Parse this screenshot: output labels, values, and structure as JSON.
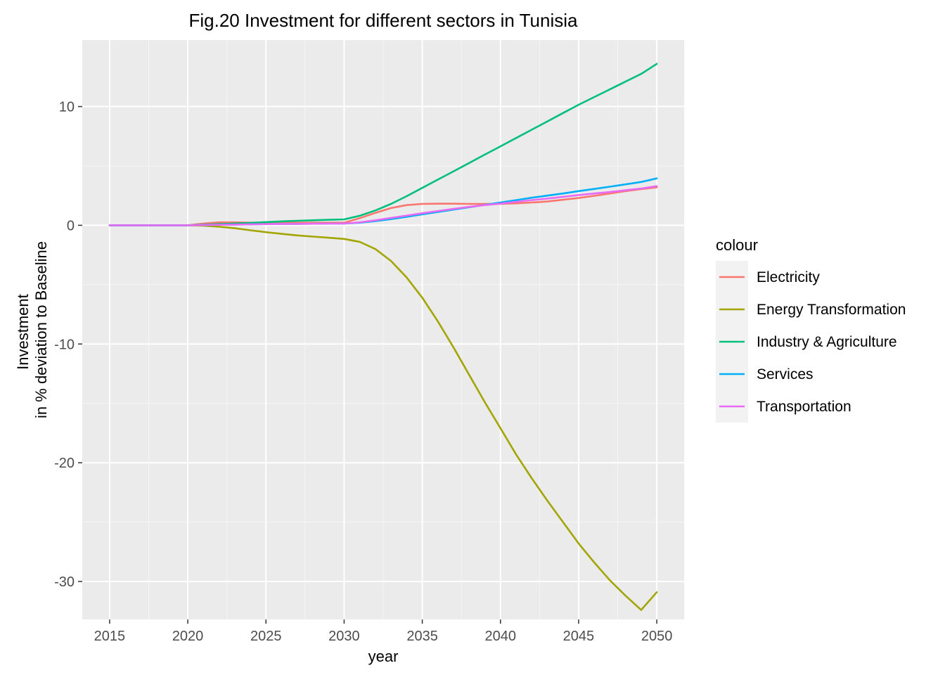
{
  "chart_data": {
    "type": "line",
    "title": "Fig.20 Investment for different sectors in Tunisia",
    "xlabel": "year",
    "ylabel_lines": [
      "Investment",
      "in % deviation to Baseline"
    ],
    "xlim": [
      2013.25,
      2051.75
    ],
    "ylim": [
      -33.2,
      15.6
    ],
    "x_ticks": [
      2015,
      2020,
      2025,
      2030,
      2035,
      2040,
      2045,
      2050
    ],
    "x_tick_labels": [
      "2015",
      "2020",
      "2025",
      "2030",
      "2035",
      "2040",
      "2045",
      "2050"
    ],
    "y_ticks": [
      10,
      0,
      -10,
      -20,
      -30
    ],
    "y_tick_labels": [
      "10",
      "0",
      "-10",
      "-20",
      "-30"
    ],
    "grid": true,
    "legend": {
      "title": "colour",
      "placement": "right"
    },
    "x": [
      2015,
      2016,
      2017,
      2018,
      2019,
      2020,
      2021,
      2022,
      2023,
      2024,
      2025,
      2026,
      2027,
      2028,
      2029,
      2030,
      2031,
      2032,
      2033,
      2034,
      2035,
      2036,
      2037,
      2038,
      2039,
      2040,
      2041,
      2042,
      2043,
      2044,
      2045,
      2046,
      2047,
      2048,
      2049,
      2050
    ],
    "series": [
      {
        "name": "Electricity",
        "color": "#F8766D",
        "values": [
          0,
          0,
          0,
          0,
          0,
          0,
          0.15,
          0.25,
          0.25,
          0.22,
          0.22,
          0.22,
          0.22,
          0.22,
          0.22,
          0.22,
          0.6,
          1.05,
          1.45,
          1.7,
          1.8,
          1.82,
          1.82,
          1.8,
          1.8,
          1.8,
          1.85,
          1.92,
          2.0,
          2.15,
          2.3,
          2.48,
          2.68,
          2.88,
          3.05,
          3.2
        ]
      },
      {
        "name": "Energy Transformation",
        "color": "#A3A500",
        "values": [
          0,
          0,
          0,
          0,
          0,
          0,
          -0.03,
          -0.12,
          -0.25,
          -0.42,
          -0.58,
          -0.72,
          -0.85,
          -0.95,
          -1.05,
          -1.15,
          -1.4,
          -2.0,
          -3.0,
          -4.4,
          -6.1,
          -8.1,
          -10.3,
          -12.6,
          -14.9,
          -17.1,
          -19.3,
          -21.3,
          -23.2,
          -25.0,
          -26.8,
          -28.4,
          -29.9,
          -31.2,
          -32.4,
          -30.9
        ]
      },
      {
        "name": "Industry & Agriculture",
        "color": "#00BF7D",
        "values": [
          0,
          0,
          0,
          0,
          0,
          0,
          0.05,
          0.1,
          0.15,
          0.2,
          0.27,
          0.33,
          0.38,
          0.42,
          0.46,
          0.5,
          0.8,
          1.25,
          1.8,
          2.45,
          3.15,
          3.85,
          4.55,
          5.25,
          5.95,
          6.65,
          7.35,
          8.05,
          8.75,
          9.45,
          10.15,
          10.8,
          11.45,
          12.1,
          12.75,
          13.6
        ]
      },
      {
        "name": "Services",
        "color": "#00B0F6",
        "values": [
          0,
          0,
          0,
          0,
          0,
          0,
          0.02,
          0.04,
          0.06,
          0.08,
          0.1,
          0.11,
          0.12,
          0.13,
          0.14,
          0.15,
          0.22,
          0.35,
          0.52,
          0.72,
          0.92,
          1.12,
          1.32,
          1.52,
          1.72,
          1.92,
          2.12,
          2.32,
          2.5,
          2.68,
          2.88,
          3.06,
          3.25,
          3.45,
          3.65,
          3.95
        ]
      },
      {
        "name": "Transportation",
        "color": "#E76BF3",
        "values": [
          0,
          0,
          0,
          0,
          0,
          0,
          0.02,
          0.04,
          0.06,
          0.08,
          0.1,
          0.11,
          0.12,
          0.13,
          0.14,
          0.15,
          0.25,
          0.42,
          0.62,
          0.82,
          1.02,
          1.2,
          1.38,
          1.55,
          1.7,
          1.82,
          1.98,
          2.12,
          2.25,
          2.4,
          2.55,
          2.68,
          2.8,
          2.95,
          3.1,
          3.3
        ]
      }
    ],
    "colors": {
      "panel_bg": "#EBEBEB",
      "grid_major": "#FFFFFF",
      "legend_key_bg": "#F2F2F2"
    }
  }
}
